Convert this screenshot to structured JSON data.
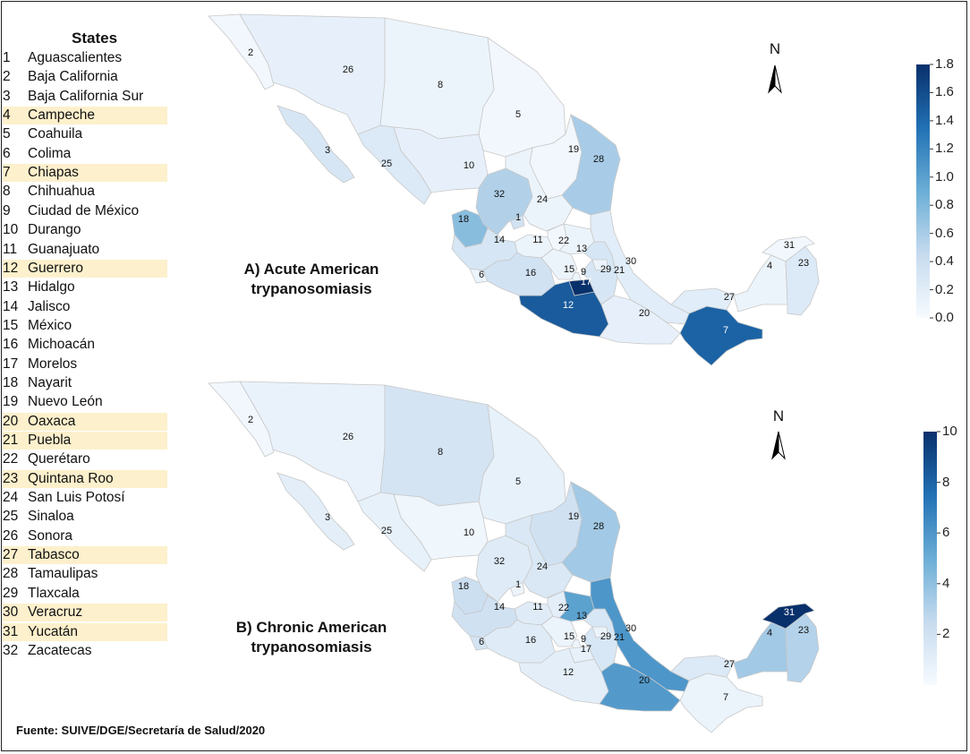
{
  "legend": {
    "title": "States",
    "states": [
      {
        "n": "1",
        "name": "Aguascalientes",
        "hl": false
      },
      {
        "n": "2",
        "name": "Baja California",
        "hl": false
      },
      {
        "n": "3",
        "name": "Baja California Sur",
        "hl": false
      },
      {
        "n": "4",
        "name": "Campeche",
        "hl": true
      },
      {
        "n": "5",
        "name": "Coahuila",
        "hl": false
      },
      {
        "n": "6",
        "name": "Colima",
        "hl": false
      },
      {
        "n": "7",
        "name": "Chiapas",
        "hl": true
      },
      {
        "n": "8",
        "name": "Chihuahua",
        "hl": false
      },
      {
        "n": "9",
        "name": "Ciudad de México",
        "hl": false
      },
      {
        "n": "10",
        "name": "Durango",
        "hl": false
      },
      {
        "n": "11",
        "name": "Guanajuato",
        "hl": false
      },
      {
        "n": "12",
        "name": "Guerrero",
        "hl": true
      },
      {
        "n": "13",
        "name": "Hidalgo",
        "hl": false
      },
      {
        "n": "14",
        "name": "Jalisco",
        "hl": false
      },
      {
        "n": "15",
        "name": "México",
        "hl": false
      },
      {
        "n": "16",
        "name": "Michoacán",
        "hl": false
      },
      {
        "n": "17",
        "name": "Morelos",
        "hl": false
      },
      {
        "n": "18",
        "name": "Nayarit",
        "hl": false
      },
      {
        "n": "19",
        "name": "Nuevo León",
        "hl": false
      },
      {
        "n": "20",
        "name": "Oaxaca",
        "hl": true
      },
      {
        "n": "21",
        "name": "Puebla",
        "hl": true
      },
      {
        "n": "22",
        "name": "Querétaro",
        "hl": false
      },
      {
        "n": "23",
        "name": "Quintana Roo",
        "hl": true
      },
      {
        "n": "24",
        "name": "San Luis Potosí",
        "hl": false
      },
      {
        "n": "25",
        "name": "Sinaloa",
        "hl": false
      },
      {
        "n": "26",
        "name": "Sonora",
        "hl": false
      },
      {
        "n": "27",
        "name": "Tabasco",
        "hl": true
      },
      {
        "n": "28",
        "name": "Tamaulipas",
        "hl": false
      },
      {
        "n": "29",
        "name": "Tlaxcala",
        "hl": false
      },
      {
        "n": "30",
        "name": "Veracruz",
        "hl": true
      },
      {
        "n": "31",
        "name": "Yucatán",
        "hl": true
      },
      {
        "n": "32",
        "name": "Zacatecas",
        "hl": false
      }
    ]
  },
  "panels": [
    {
      "id": "acute",
      "label_line1": "A) Acute American",
      "label_line2": "trypanosomiasis",
      "north": "N",
      "colorbar": {
        "min": 0.0,
        "max": 1.8,
        "ticks": [
          "0.0",
          "0.2",
          "0.4",
          "0.6",
          "0.8",
          "1.0",
          "1.2",
          "1.4",
          "1.6",
          "1.8"
        ]
      },
      "fill_levels": {
        "1": 0.35,
        "2": 0.05,
        "3": 0.3,
        "4": 0.1,
        "5": 0.05,
        "6": 0.1,
        "7": 1.45,
        "8": 0.1,
        "9": 0.1,
        "10": 0.15,
        "11": 0.1,
        "12": 1.5,
        "13": 0.1,
        "14": 0.3,
        "15": 0.1,
        "16": 0.35,
        "17": 1.8,
        "18": 0.75,
        "19": 0.05,
        "20": 0.15,
        "21": 0.3,
        "22": 0.05,
        "23": 0.25,
        "24": 0.1,
        "25": 0.25,
        "26": 0.15,
        "27": 0.2,
        "28": 0.6,
        "29": 0.1,
        "30": 0.2,
        "31": 0.05,
        "32": 0.55
      }
    },
    {
      "id": "chronic",
      "label_line1": "B) Chronic American",
      "label_line2": "trypanosomiasis",
      "north": "N",
      "colorbar": {
        "min": 0,
        "max": 10,
        "ticks": [
          "2",
          "4",
          "6",
          "8",
          "10"
        ]
      },
      "fill_levels": {
        "1": 0.5,
        "2": 0.3,
        "3": 1.0,
        "4": 3.5,
        "5": 0.8,
        "6": 1.8,
        "7": 0.6,
        "8": 1.8,
        "9": 0.5,
        "10": 0.4,
        "11": 1.2,
        "12": 1.0,
        "13": 5.5,
        "14": 2.0,
        "15": 0.6,
        "16": 1.2,
        "17": 0.8,
        "18": 2.2,
        "19": 2.0,
        "20": 5.8,
        "21": 1.6,
        "22": 1.0,
        "23": 3.0,
        "24": 1.5,
        "25": 0.8,
        "26": 0.7,
        "27": 1.4,
        "28": 3.5,
        "29": 0.6,
        "30": 6.0,
        "31": 10,
        "32": 1.2
      }
    }
  ],
  "source": "Fuente: SUIVE/DGE/Secretaría de Salud/2020",
  "colors": {
    "low": "#f2f7fd",
    "high": "#08306b",
    "border": "#c8c8c8",
    "highlight": "#fdf0cc"
  }
}
